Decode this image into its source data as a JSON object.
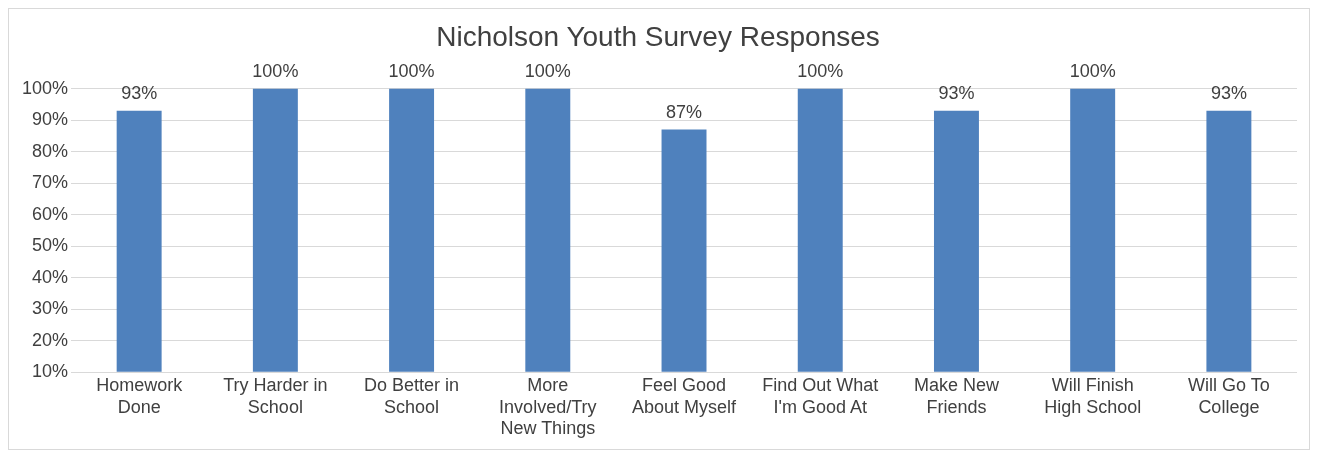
{
  "chart_data": {
    "type": "bar",
    "title": "Nicholson Youth Survey Responses",
    "categories": [
      "Homework Done",
      "Try Harder in School",
      "Do Better in School",
      "More Involved/Try New Things",
      "Feel Good About Myself",
      "Find Out What I'm Good At",
      "Make New Friends",
      "Will Finish High School",
      "Will Go To College"
    ],
    "values": [
      93,
      100,
      100,
      100,
      87,
      100,
      93,
      100,
      93
    ],
    "value_labels": [
      "93%",
      "100%",
      "100%",
      "100%",
      "87%",
      "100%",
      "93%",
      "100%",
      "93%"
    ],
    "color": "#4f81bd",
    "ylim": [
      10,
      100
    ],
    "yticks": [
      {
        "value": 10,
        "label": "10%"
      },
      {
        "value": 20,
        "label": "20%"
      },
      {
        "value": 30,
        "label": "30%"
      },
      {
        "value": 40,
        "label": "40%"
      },
      {
        "value": 50,
        "label": "50%"
      },
      {
        "value": 60,
        "label": "60%"
      },
      {
        "value": 70,
        "label": "70%"
      },
      {
        "value": 80,
        "label": "80%"
      },
      {
        "value": 90,
        "label": "90%"
      },
      {
        "value": 100,
        "label": "100%"
      }
    ],
    "grid": "y",
    "legend": false
  }
}
